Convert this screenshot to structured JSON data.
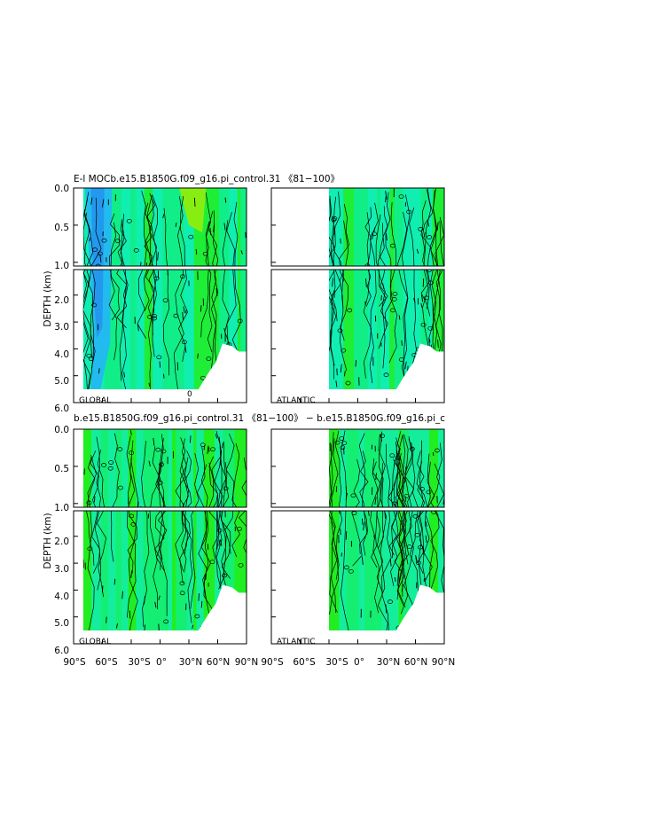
{
  "colors": {
    "background": "#ffffff",
    "ocean_green": "#22ee22",
    "ocean_mid": "#11ee88",
    "ocean_teal": "#11eebb",
    "ocean_light_blue": "#22bbee",
    "ocean_blue": "#2299ee",
    "yellow_green": "#88ee11",
    "contour": "#000000"
  },
  "chart_data": [
    {
      "type": "contour",
      "title": "E-l MOCb.e15.B1850G.f09_g16.pi_control.31  《81−100》",
      "ylabel": "DEPTH  (km)",
      "xlim": [
        -90,
        90
      ],
      "ylim": [
        6.0,
        0.0
      ],
      "y_ticks_upper": [
        "0.0",
        "0.5",
        "1.0"
      ],
      "y_ticks_lower": [
        "2.0",
        "3.0",
        "4.0",
        "5.0",
        "6.0"
      ],
      "panels": [
        {
          "label": "GLOBAL",
          "x_start": -80,
          "contour_label": "0"
        },
        {
          "label": "ATLANTIC",
          "x_start": -30,
          "contour_label": ""
        }
      ]
    },
    {
      "type": "contour",
      "title": "b.e15.B1850G.f09_g16.pi_control.31  《81−100》  −  b.e15.B1850G.f09_g16.pi_c",
      "ylabel": "DEPTH  (km)",
      "xlim": [
        -90,
        90
      ],
      "ylim": [
        6.0,
        0.0
      ],
      "y_ticks_upper": [
        "0.0",
        "0.5",
        "1.0"
      ],
      "y_ticks_lower": [
        "2.0",
        "3.0",
        "4.0",
        "5.0",
        "6.0"
      ],
      "panels": [
        {
          "label": "GLOBAL",
          "x_start": -80,
          "contour_label": ""
        },
        {
          "label": "ATLANTIC",
          "x_start": -30,
          "contour_label": ""
        }
      ]
    }
  ],
  "x_ticks": [
    "90°S",
    "60°S",
    "30°S",
    "0°",
    "30°N",
    "60°N",
    "90°N"
  ]
}
